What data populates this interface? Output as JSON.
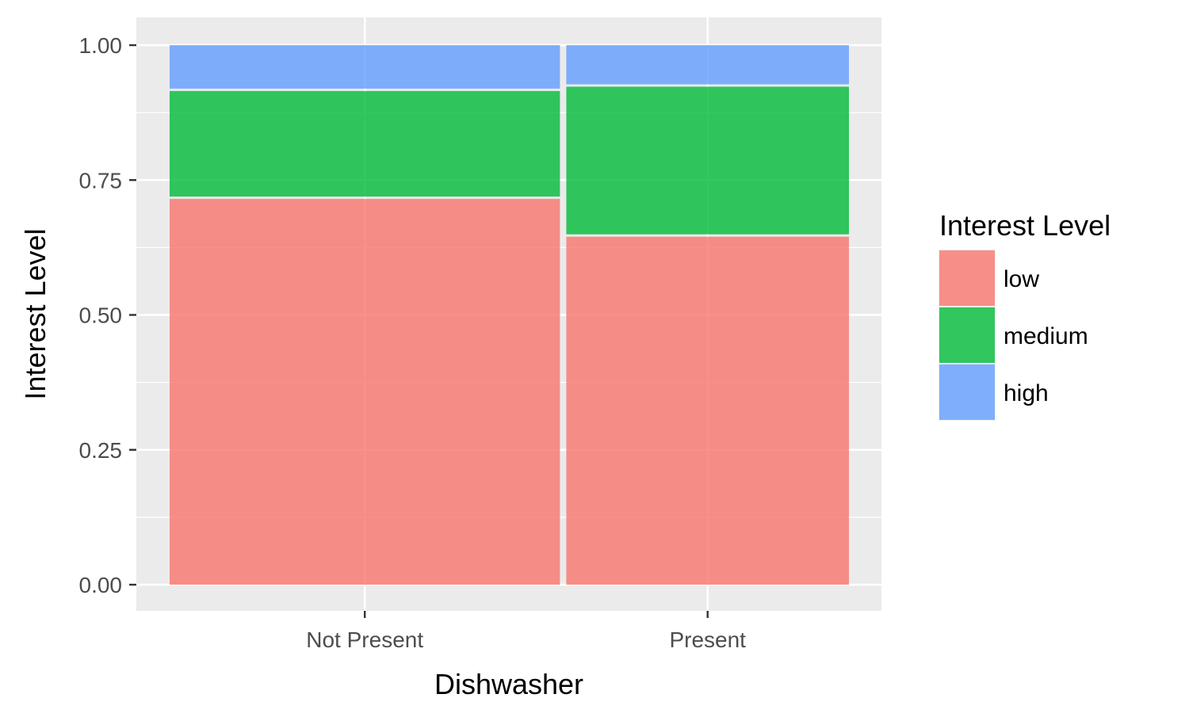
{
  "chart_data": {
    "type": "bar",
    "subtype": "mosaic",
    "xlabel": "Dishwasher",
    "ylabel": "Interest Level",
    "categories": [
      "Not Present",
      "Present"
    ],
    "category_widths": [
      0.58,
      0.42
    ],
    "series": [
      {
        "name": "low",
        "values": [
          0.715,
          0.645
        ],
        "color": "#F8766D"
      },
      {
        "name": "medium",
        "values": [
          0.2,
          0.278
        ],
        "color": "#00BA38"
      },
      {
        "name": "high",
        "values": [
          0.085,
          0.077
        ],
        "color": "#619CFF"
      }
    ],
    "ylim": [
      0,
      1
    ],
    "yticks": [
      "0.00",
      "0.25",
      "0.50",
      "0.75",
      "1.00"
    ],
    "ytick_values": [
      0,
      0.25,
      0.5,
      0.75,
      1
    ],
    "grid": true,
    "panel_color": "#EBEBEB",
    "legend": {
      "title": "Interest Level",
      "position": "right",
      "items": [
        "low",
        "medium",
        "high"
      ]
    }
  }
}
